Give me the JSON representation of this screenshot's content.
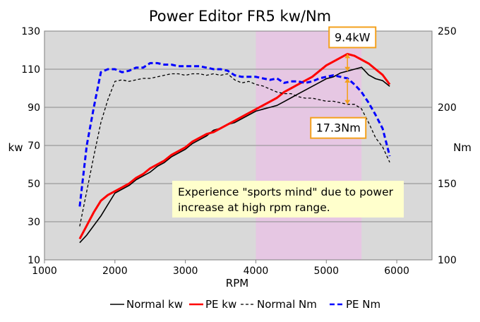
{
  "colors": {
    "plot_bg": "#d9d9d9",
    "highlight": "#e6c7e3",
    "normal_kw": "#000000",
    "pe_kw": "#ff0000",
    "normal_nm": "#000000",
    "pe_nm": "#0000ff",
    "annotation_border": "#f4a11d",
    "annotation_arrow": "#f4a11d",
    "note_bg": "#ffffcc"
  },
  "chart_data": {
    "type": "line",
    "title": "Power Editor FR5 kw/Nm",
    "xlabel": "RPM",
    "ylabel_left": "kw",
    "ylabel_right": "Nm",
    "xlim": [
      1000,
      6500
    ],
    "ylim_left": [
      10,
      130
    ],
    "ylim_right": [
      100,
      250
    ],
    "x_ticks": [
      "1000",
      "2000",
      "3000",
      "4000",
      "5000",
      "6000"
    ],
    "y_left_ticks": [
      "10",
      "30",
      "50",
      "70",
      "90",
      "110",
      "130"
    ],
    "y_right_ticks": [
      "100",
      "150",
      "200",
      "250"
    ],
    "highlight_range": [
      4000,
      5500
    ],
    "grid": "horizontal",
    "legend_position": "bottom",
    "series": [
      {
        "name": "Normal kw",
        "axis": "left",
        "style": "solid",
        "x": [
          1500,
          1600,
          1700,
          1800,
          1900,
          2000,
          2100,
          2200,
          2300,
          2400,
          2500,
          2600,
          2700,
          2800,
          2900,
          3000,
          3100,
          3200,
          3300,
          3400,
          3500,
          3600,
          3700,
          3800,
          3900,
          4000,
          4100,
          4200,
          4300,
          4400,
          4500,
          4600,
          4700,
          4800,
          4900,
          5000,
          5100,
          5200,
          5300,
          5400,
          5500,
          5600,
          5700,
          5800,
          5900
        ],
        "values": [
          19,
          23,
          28,
          33,
          39,
          45,
          47,
          49,
          52,
          54,
          56,
          59,
          61,
          64,
          66,
          68,
          71,
          73,
          75,
          78,
          79,
          81,
          82,
          84,
          86,
          88,
          89,
          90,
          91,
          93,
          95,
          97,
          99,
          101,
          103,
          105,
          106,
          108,
          109,
          110,
          111,
          107,
          105,
          104,
          101
        ]
      },
      {
        "name": "PE kw",
        "axis": "left",
        "style": "solid",
        "x": [
          1500,
          1600,
          1700,
          1800,
          1900,
          2000,
          2100,
          2200,
          2300,
          2400,
          2500,
          2600,
          2700,
          2800,
          2900,
          3000,
          3100,
          3200,
          3300,
          3400,
          3500,
          3600,
          3700,
          3800,
          3900,
          4000,
          4100,
          4200,
          4300,
          4400,
          4500,
          4600,
          4700,
          4800,
          4900,
          5000,
          5100,
          5200,
          5300,
          5400,
          5500,
          5600,
          5700,
          5800,
          5900
        ],
        "values": [
          21,
          28,
          35,
          41,
          44,
          46,
          48,
          50,
          53,
          55,
          58,
          60,
          62,
          65,
          67,
          69,
          72,
          74,
          76,
          77,
          79,
          81,
          83,
          85,
          87,
          89,
          91,
          93,
          95,
          98,
          100,
          102,
          104,
          106,
          109,
          112,
          114,
          116,
          118,
          117,
          115,
          113,
          110,
          107,
          102
        ]
      },
      {
        "name": "Normal Nm",
        "axis": "right",
        "style": "dashed",
        "x": [
          1500,
          1600,
          1700,
          1800,
          1900,
          2000,
          2100,
          2200,
          2300,
          2400,
          2500,
          2600,
          2700,
          2800,
          2900,
          3000,
          3100,
          3200,
          3300,
          3400,
          3500,
          3600,
          3700,
          3800,
          3900,
          4000,
          4100,
          4200,
          4300,
          4400,
          4500,
          4600,
          4700,
          4800,
          4900,
          5000,
          5100,
          5200,
          5300,
          5400,
          5500,
          5600,
          5700,
          5800,
          5900
        ],
        "values": [
          122,
          145,
          168,
          190,
          205,
          217,
          218,
          217,
          218,
          219,
          219,
          220,
          221,
          222,
          222,
          221,
          222,
          222,
          221,
          222,
          221,
          222,
          218,
          216,
          217,
          215,
          214,
          212,
          210,
          209,
          209,
          207,
          206,
          206,
          205,
          204,
          204,
          203,
          202,
          202,
          199,
          190,
          180,
          174,
          164
        ]
      },
      {
        "name": "PE Nm",
        "axis": "right",
        "style": "dashed",
        "x": [
          1500,
          1600,
          1700,
          1800,
          1900,
          2000,
          2100,
          2200,
          2300,
          2400,
          2500,
          2600,
          2700,
          2800,
          2900,
          3000,
          3100,
          3200,
          3300,
          3400,
          3500,
          3600,
          3700,
          3800,
          3900,
          4000,
          4100,
          4200,
          4300,
          4400,
          4500,
          4600,
          4700,
          4800,
          4900,
          5000,
          5100,
          5200,
          5300,
          5400,
          5500,
          5600,
          5700,
          5800,
          5900
        ],
        "values": [
          135,
          175,
          200,
          223,
          225,
          225,
          223,
          224,
          226,
          226,
          229,
          229,
          228,
          228,
          227,
          227,
          227,
          227,
          226,
          225,
          225,
          224,
          221,
          220,
          220,
          220,
          219,
          218,
          219,
          216,
          217,
          217,
          216,
          217,
          219,
          220,
          221,
          220,
          219,
          215,
          210,
          203,
          195,
          186,
          168
        ]
      }
    ],
    "annotations": [
      {
        "label": "9.4kW",
        "x": 5300,
        "from": 109,
        "to": 118,
        "axis": "left"
      },
      {
        "label": "17.3Nm",
        "x": 5300,
        "from": 202,
        "to": 219,
        "axis": "right"
      }
    ],
    "note": {
      "lines": [
        "Experience \"sports mind\" due to power",
        "increase at high rpm range."
      ]
    }
  }
}
